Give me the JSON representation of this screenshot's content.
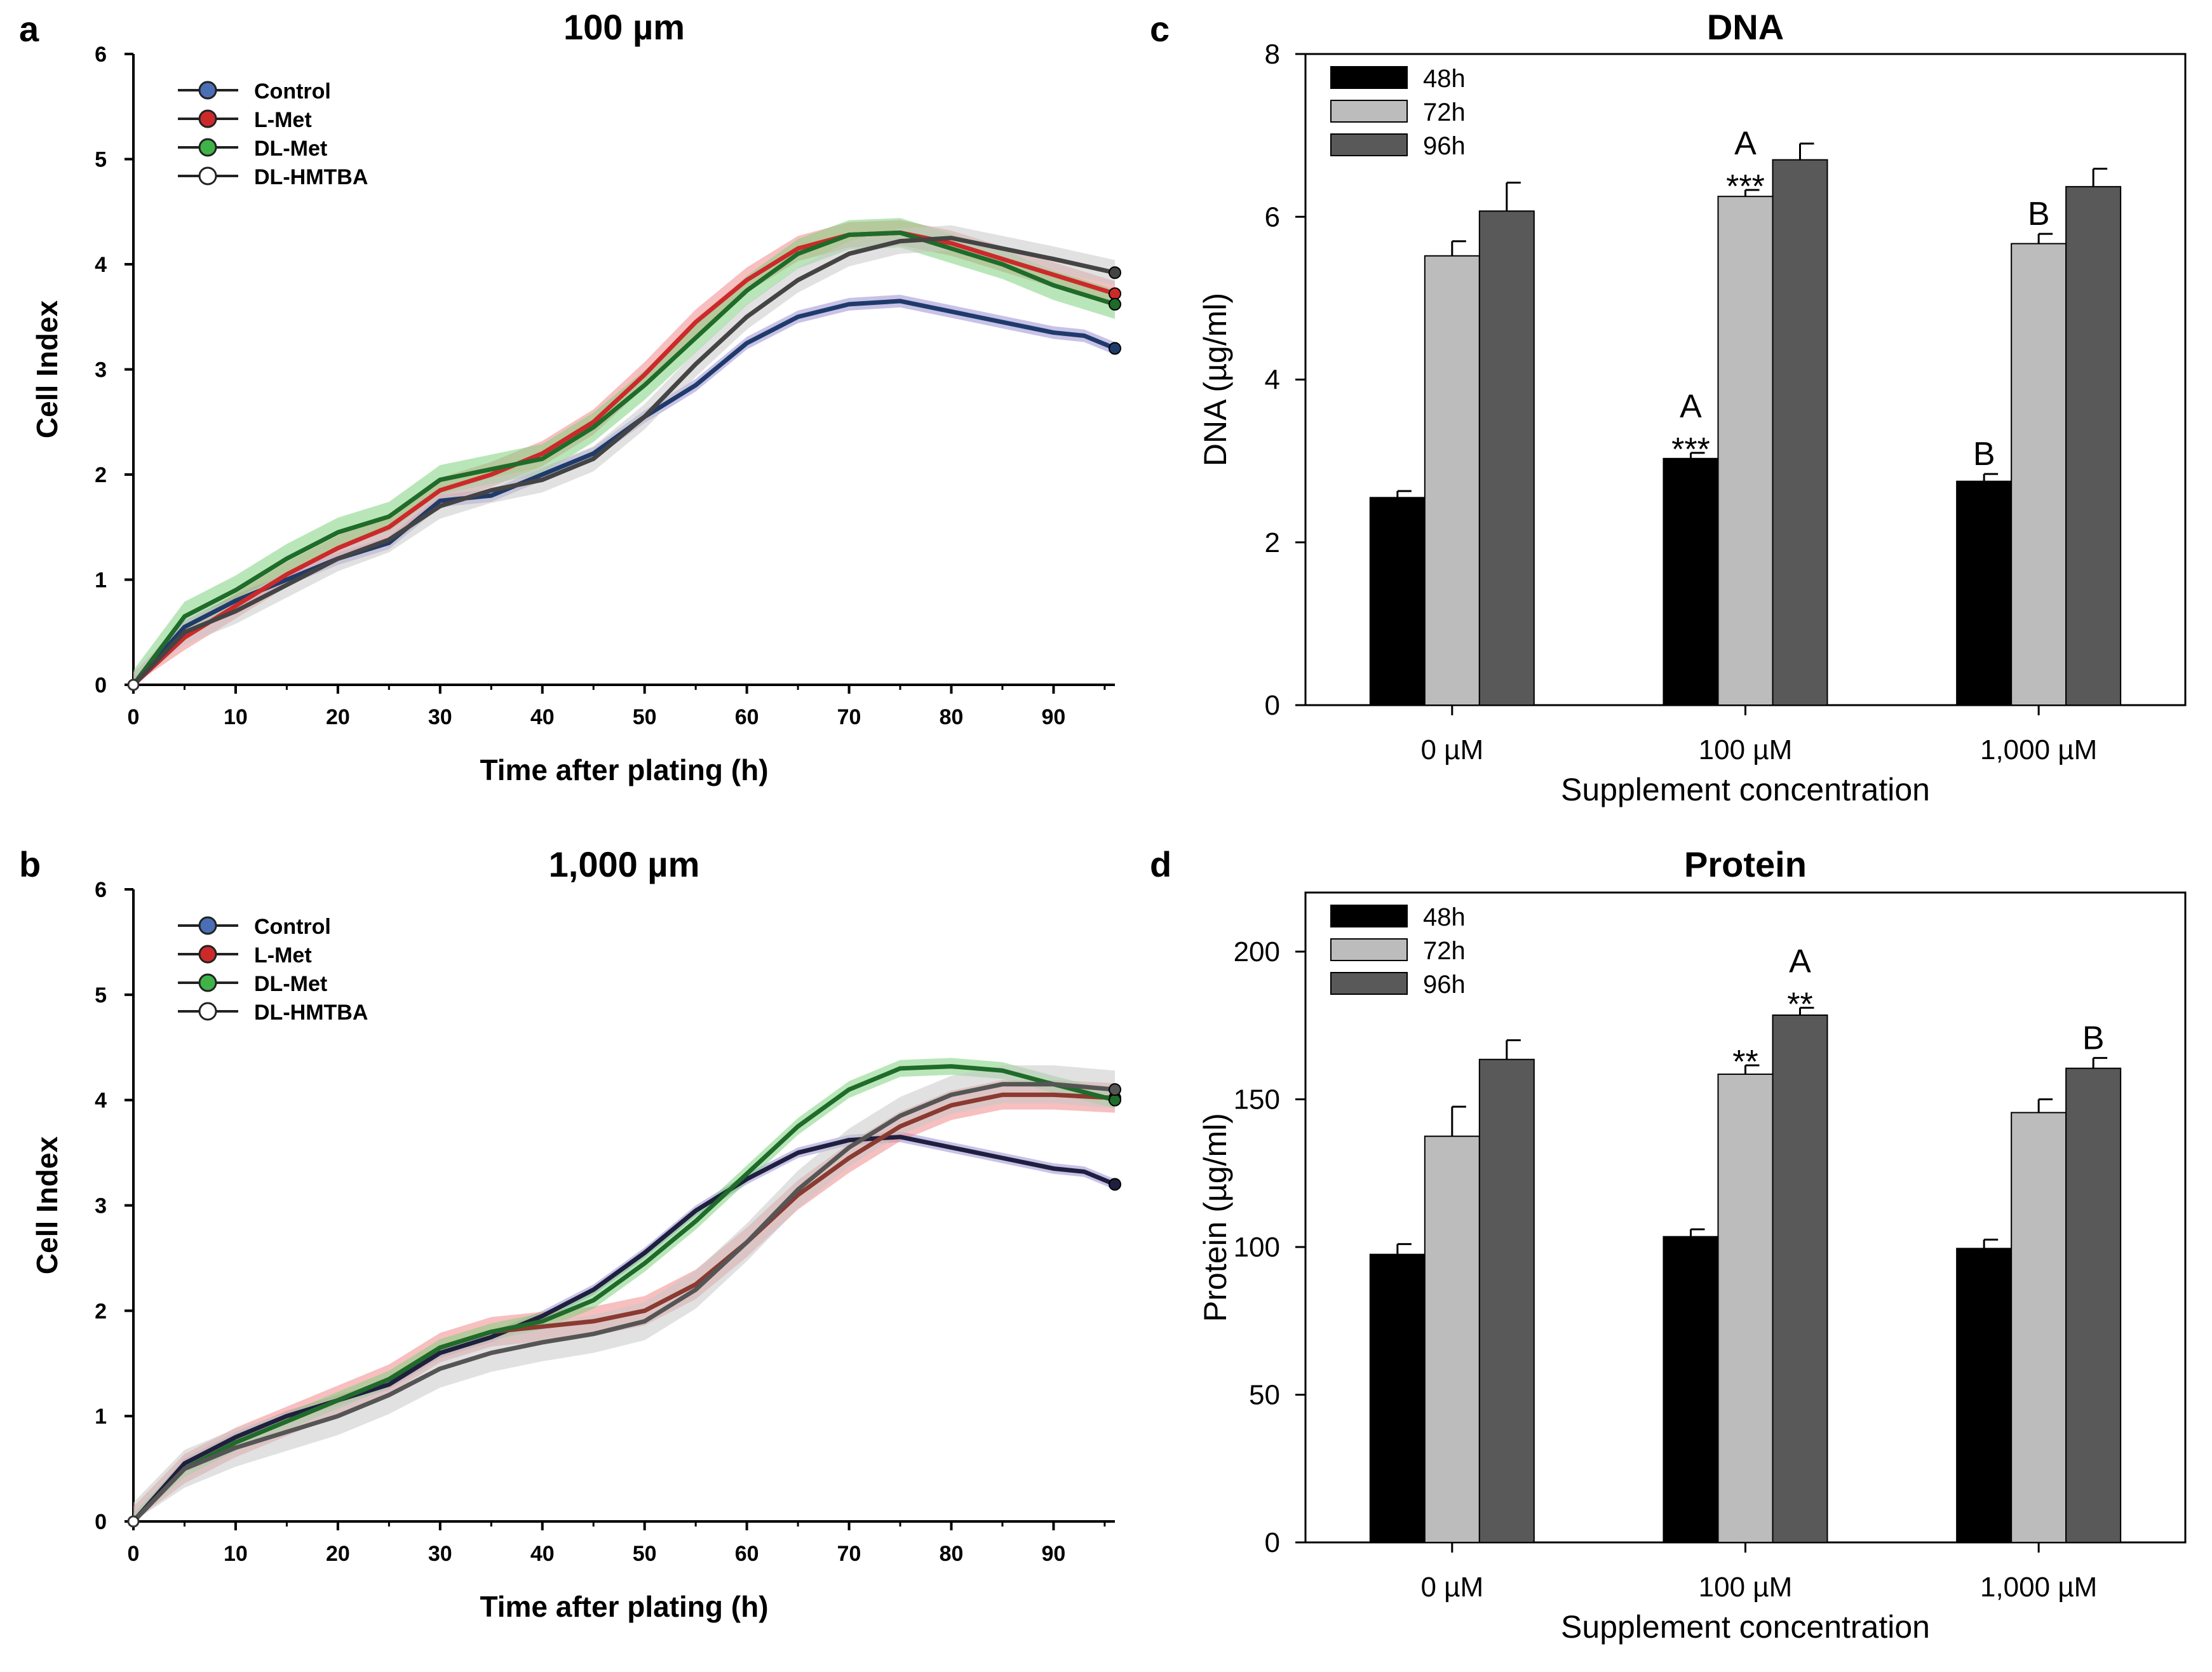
{
  "chart_data": [
    {
      "panel": "a",
      "type": "line",
      "title": "100 µm",
      "xlabel": "Time after plating (h)",
      "ylabel": "Cell Index",
      "xlim": [
        0,
        96
      ],
      "ylim": [
        0,
        6
      ],
      "xticks": [
        "0",
        "10",
        "20",
        "30",
        "40",
        "50",
        "60",
        "70",
        "80",
        "90"
      ],
      "yticks": [
        "0",
        "1",
        "2",
        "3",
        "4",
        "5",
        "6"
      ],
      "legend_position": "top-left",
      "series": [
        {
          "name": "Control",
          "color": "#4a6fb5",
          "line": "#1f3b6b",
          "band": "#9b8fd4",
          "x": [
            0,
            5,
            10,
            15,
            20,
            25,
            30,
            35,
            40,
            45,
            50,
            55,
            60,
            65,
            70,
            75,
            80,
            85,
            90,
            93,
            96
          ],
          "y": [
            0,
            0.55,
            0.8,
            1.0,
            1.2,
            1.35,
            1.75,
            1.8,
            2.0,
            2.2,
            2.55,
            2.85,
            3.25,
            3.5,
            3.62,
            3.65,
            3.55,
            3.45,
            3.35,
            3.32,
            3.2
          ],
          "err": 0.06
        },
        {
          "name": "L-Met",
          "color": "#cc2a2a",
          "line": "#cc2a2a",
          "band": "#f08a8a",
          "x": [
            0,
            5,
            10,
            15,
            20,
            25,
            30,
            35,
            40,
            45,
            50,
            55,
            60,
            65,
            70,
            75,
            80,
            85,
            90,
            96
          ],
          "y": [
            0,
            0.45,
            0.75,
            1.05,
            1.3,
            1.5,
            1.85,
            2.0,
            2.2,
            2.5,
            2.95,
            3.45,
            3.85,
            4.15,
            4.28,
            4.3,
            4.2,
            4.05,
            3.9,
            3.72
          ],
          "err": 0.12
        },
        {
          "name": "DL-Met",
          "color": "#3fb34a",
          "line": "#1f6b2a",
          "band": "#7fd17f",
          "x": [
            0,
            5,
            10,
            15,
            20,
            25,
            30,
            35,
            40,
            45,
            50,
            55,
            60,
            65,
            70,
            75,
            80,
            85,
            90,
            96
          ],
          "y": [
            0,
            0.65,
            0.9,
            1.2,
            1.45,
            1.6,
            1.95,
            2.05,
            2.15,
            2.45,
            2.85,
            3.3,
            3.75,
            4.1,
            4.28,
            4.3,
            4.15,
            4.0,
            3.8,
            3.62
          ],
          "err": 0.14
        },
        {
          "name": "DL-HMTBA",
          "color": "#ffffff",
          "line": "#444444",
          "band": "#c8c8c8",
          "x": [
            0,
            5,
            10,
            15,
            20,
            25,
            30,
            35,
            40,
            45,
            50,
            55,
            60,
            65,
            70,
            75,
            80,
            85,
            90,
            96
          ],
          "y": [
            0,
            0.5,
            0.7,
            0.95,
            1.2,
            1.38,
            1.7,
            1.85,
            1.95,
            2.15,
            2.55,
            3.05,
            3.5,
            3.85,
            4.1,
            4.22,
            4.25,
            4.15,
            4.05,
            3.92
          ],
          "err": 0.12
        }
      ]
    },
    {
      "panel": "b",
      "type": "line",
      "title": "1,000 µm",
      "xlabel": "Time after plating (h)",
      "ylabel": "Cell Index",
      "xlim": [
        0,
        96
      ],
      "ylim": [
        0,
        6
      ],
      "xticks": [
        "0",
        "10",
        "20",
        "30",
        "40",
        "50",
        "60",
        "70",
        "80",
        "90"
      ],
      "yticks": [
        "0",
        "1",
        "2",
        "3",
        "4",
        "5",
        "6"
      ],
      "legend_position": "top-left",
      "series": [
        {
          "name": "Control",
          "color": "#4a6fb5",
          "line": "#1f1f3f",
          "band": "#9b8fd4",
          "x": [
            0,
            5,
            10,
            15,
            20,
            25,
            30,
            35,
            40,
            45,
            50,
            55,
            60,
            65,
            70,
            75,
            80,
            85,
            90,
            93,
            96
          ],
          "y": [
            0,
            0.55,
            0.8,
            1.0,
            1.15,
            1.3,
            1.6,
            1.75,
            1.95,
            2.2,
            2.55,
            2.95,
            3.25,
            3.5,
            3.62,
            3.65,
            3.55,
            3.45,
            3.35,
            3.32,
            3.2
          ],
          "err": 0.05
        },
        {
          "name": "L-Met",
          "color": "#cc2a2a",
          "line": "#8a3a30",
          "band": "#f08a8a",
          "x": [
            0,
            5,
            10,
            15,
            20,
            25,
            30,
            35,
            40,
            45,
            50,
            55,
            60,
            65,
            70,
            75,
            80,
            85,
            90,
            96
          ],
          "y": [
            0,
            0.5,
            0.75,
            0.95,
            1.15,
            1.35,
            1.65,
            1.8,
            1.85,
            1.9,
            2.0,
            2.25,
            2.65,
            3.1,
            3.45,
            3.75,
            3.95,
            4.05,
            4.05,
            4.02
          ],
          "err": 0.14
        },
        {
          "name": "DL-Met",
          "color": "#3fb34a",
          "line": "#1f6b2a",
          "band": "#7fd17f",
          "x": [
            0,
            5,
            10,
            15,
            20,
            25,
            30,
            35,
            40,
            45,
            50,
            55,
            60,
            65,
            70,
            75,
            80,
            85,
            90,
            96
          ],
          "y": [
            0,
            0.5,
            0.75,
            0.95,
            1.15,
            1.35,
            1.65,
            1.8,
            1.9,
            2.1,
            2.45,
            2.85,
            3.3,
            3.75,
            4.1,
            4.3,
            4.32,
            4.28,
            4.15,
            4.0
          ],
          "err": 0.08
        },
        {
          "name": "DL-HMTBA",
          "color": "#ffffff",
          "line": "#555555",
          "band": "#c8c8c8",
          "x": [
            0,
            5,
            10,
            15,
            20,
            25,
            30,
            35,
            40,
            45,
            50,
            55,
            60,
            65,
            70,
            75,
            80,
            85,
            90,
            96
          ],
          "y": [
            0,
            0.5,
            0.7,
            0.85,
            1.0,
            1.2,
            1.45,
            1.6,
            1.7,
            1.78,
            1.9,
            2.2,
            2.65,
            3.15,
            3.55,
            3.85,
            4.05,
            4.15,
            4.15,
            4.1
          ],
          "err": 0.18
        }
      ]
    },
    {
      "panel": "c",
      "type": "bar",
      "title": "DNA",
      "xlabel": "Supplement concentration",
      "ylabel": "DNA (µg/ml)",
      "ylim": [
        0,
        8
      ],
      "yticks": [
        "0",
        "2",
        "4",
        "6",
        "8"
      ],
      "categories": [
        "0 µM",
        "100 µM",
        "1,000 µM"
      ],
      "legend_position": "top-left",
      "series": [
        {
          "name": "48h",
          "color": "#000000",
          "values": [
            2.55,
            3.03,
            2.75
          ],
          "errors": [
            0.08,
            0.07,
            0.09
          ],
          "stars": [
            "",
            "***",
            ""
          ],
          "letters": [
            "",
            "A",
            "B"
          ]
        },
        {
          "name": "72h",
          "color": "#bcbcbc",
          "values": [
            5.52,
            6.25,
            5.67
          ],
          "errors": [
            0.18,
            0.08,
            0.12
          ],
          "stars": [
            "",
            "***",
            ""
          ],
          "letters": [
            "",
            "A",
            "B"
          ]
        },
        {
          "name": "96h",
          "color": "#595959",
          "values": [
            6.07,
            6.7,
            6.37
          ],
          "errors": [
            0.35,
            0.2,
            0.22
          ],
          "stars": [
            "",
            "",
            ""
          ],
          "letters": [
            "",
            "",
            ""
          ]
        }
      ]
    },
    {
      "panel": "d",
      "type": "bar",
      "title": "Protein",
      "xlabel": "Supplement concentration",
      "ylabel": "Protein (µg/ml)",
      "ylim": [
        0,
        220
      ],
      "yticks": [
        "0",
        "50",
        "100",
        "150",
        "200"
      ],
      "ytick_values": [
        0,
        50,
        100,
        150,
        200
      ],
      "categories": [
        "0 µM",
        "100 µM",
        "1,000 µM"
      ],
      "legend_position": "top-left",
      "series": [
        {
          "name": "48h",
          "color": "#000000",
          "values": [
            97.5,
            103.5,
            99.5
          ],
          "errors": [
            3.5,
            2.5,
            3.0
          ],
          "stars": [
            "",
            "",
            ""
          ],
          "letters": [
            "",
            "",
            ""
          ]
        },
        {
          "name": "72h",
          "color": "#bcbcbc",
          "values": [
            137.5,
            158.5,
            145.5
          ],
          "errors": [
            10,
            3,
            4.5
          ],
          "stars": [
            "",
            "**",
            ""
          ],
          "letters": [
            "",
            "",
            ""
          ]
        },
        {
          "name": "96h",
          "color": "#595959",
          "values": [
            163.5,
            178.5,
            160.5
          ],
          "errors": [
            6.5,
            2.5,
            3.5
          ],
          "stars": [
            "",
            "**",
            ""
          ],
          "letters": [
            "",
            "A",
            "B"
          ]
        }
      ]
    }
  ]
}
